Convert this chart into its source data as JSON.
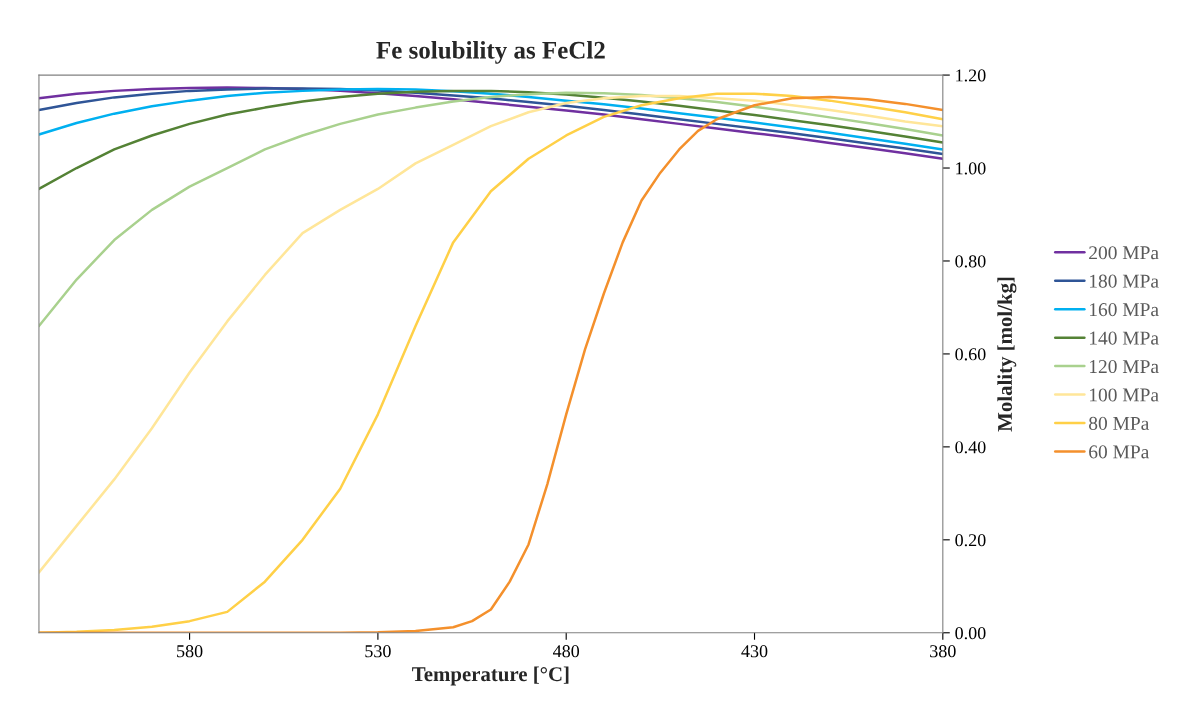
{
  "chart_data": {
    "type": "line",
    "title": "Fe solubility as FeCl2",
    "xlabel": "Temperature [°C]",
    "ylabel": "Molality [mol/kg]",
    "x": [
      620,
      610,
      600,
      590,
      580,
      570,
      560,
      550,
      540,
      530,
      520,
      510,
      500,
      490,
      480,
      470,
      460,
      450,
      440,
      430,
      420,
      410,
      400,
      390,
      380
    ],
    "series": [
      {
        "name": "200 MPa",
        "color": "#7030a0",
        "values": [
          1.15,
          1.16,
          1.166,
          1.17,
          1.172,
          1.173,
          1.172,
          1.17,
          1.166,
          1.161,
          1.155,
          1.148,
          1.14,
          1.132,
          1.124,
          1.115,
          1.105,
          1.095,
          1.085,
          1.075,
          1.065,
          1.054,
          1.043,
          1.032,
          1.02
        ]
      },
      {
        "name": "180 MPa",
        "color": "#2f5597",
        "values": [
          1.125,
          1.14,
          1.152,
          1.16,
          1.166,
          1.169,
          1.171,
          1.171,
          1.17,
          1.167,
          1.162,
          1.156,
          1.15,
          1.142,
          1.134,
          1.125,
          1.115,
          1.105,
          1.095,
          1.085,
          1.075,
          1.064,
          1.053,
          1.042,
          1.03
        ]
      },
      {
        "name": "160 MPa",
        "color": "#00b0f0",
        "values": [
          1.072,
          1.097,
          1.117,
          1.133,
          1.145,
          1.155,
          1.162,
          1.166,
          1.169,
          1.17,
          1.169,
          1.165,
          1.16,
          1.153,
          1.145,
          1.137,
          1.128,
          1.118,
          1.108,
          1.098,
          1.087,
          1.076,
          1.064,
          1.052,
          1.04
        ]
      },
      {
        "name": "140 MPa",
        "color": "#548235",
        "values": [
          0.955,
          1.0,
          1.04,
          1.07,
          1.095,
          1.115,
          1.13,
          1.143,
          1.153,
          1.16,
          1.164,
          1.166,
          1.166,
          1.163,
          1.158,
          1.151,
          1.143,
          1.134,
          1.124,
          1.114,
          1.103,
          1.092,
          1.08,
          1.068,
          1.055
        ]
      },
      {
        "name": "120 MPa",
        "color": "#a9d18e",
        "values": [
          0.66,
          0.76,
          0.845,
          0.91,
          0.96,
          1.0,
          1.04,
          1.07,
          1.095,
          1.115,
          1.13,
          1.143,
          1.153,
          1.159,
          1.162,
          1.161,
          1.157,
          1.15,
          1.142,
          1.132,
          1.121,
          1.109,
          1.097,
          1.084,
          1.07
        ]
      },
      {
        "name": "100 MPa",
        "color": "#ffe699",
        "values": [
          0.13,
          0.23,
          0.33,
          0.44,
          0.56,
          0.67,
          0.77,
          0.86,
          0.91,
          0.955,
          1.01,
          1.05,
          1.09,
          1.12,
          1.14,
          1.15,
          1.155,
          1.155,
          1.15,
          1.145,
          1.135,
          1.125,
          1.113,
          1.1,
          1.09
        ]
      },
      {
        "name": "80 MPa",
        "color": "#ffd047",
        "values": [
          0.0,
          0.002,
          0.006,
          0.013,
          0.025,
          0.045,
          0.11,
          0.2,
          0.31,
          0.47,
          0.66,
          0.84,
          0.95,
          1.02,
          1.07,
          1.11,
          1.135,
          1.15,
          1.16,
          1.16,
          1.155,
          1.145,
          1.133,
          1.12,
          1.105
        ]
      },
      {
        "name": "60 MPa",
        "color": "#f4902c",
        "x": [
          620,
          600,
          580,
          560,
          540,
          530,
          520,
          510,
          505,
          500,
          495,
          490,
          485,
          480,
          475,
          470,
          465,
          460,
          455,
          450,
          445,
          440,
          430,
          420,
          410,
          400,
          390,
          380
        ],
        "values": [
          0,
          0,
          0,
          0,
          0,
          0.001,
          0.004,
          0.012,
          0.025,
          0.05,
          0.11,
          0.19,
          0.32,
          0.47,
          0.61,
          0.73,
          0.84,
          0.93,
          0.99,
          1.04,
          1.08,
          1.105,
          1.135,
          1.15,
          1.153,
          1.148,
          1.138,
          1.125
        ]
      }
    ],
    "xlim": [
      620,
      380
    ],
    "xticks": [
      580,
      530,
      480,
      430,
      380
    ],
    "ylim": [
      0,
      1.2
    ],
    "yticks": [
      {
        "value": 0,
        "label": "0.00"
      },
      {
        "value": 0.2,
        "label": "0.20"
      },
      {
        "value": 0.4,
        "label": "0.40"
      },
      {
        "value": 0.6,
        "label": "0.60"
      },
      {
        "value": 0.8,
        "label": "0.80"
      },
      {
        "value": 1.0,
        "label": "1.00"
      },
      {
        "value": 1.2,
        "label": "1.20"
      }
    ],
    "grid": false,
    "legend": "right",
    "marker": "none",
    "line_style": "solid"
  }
}
